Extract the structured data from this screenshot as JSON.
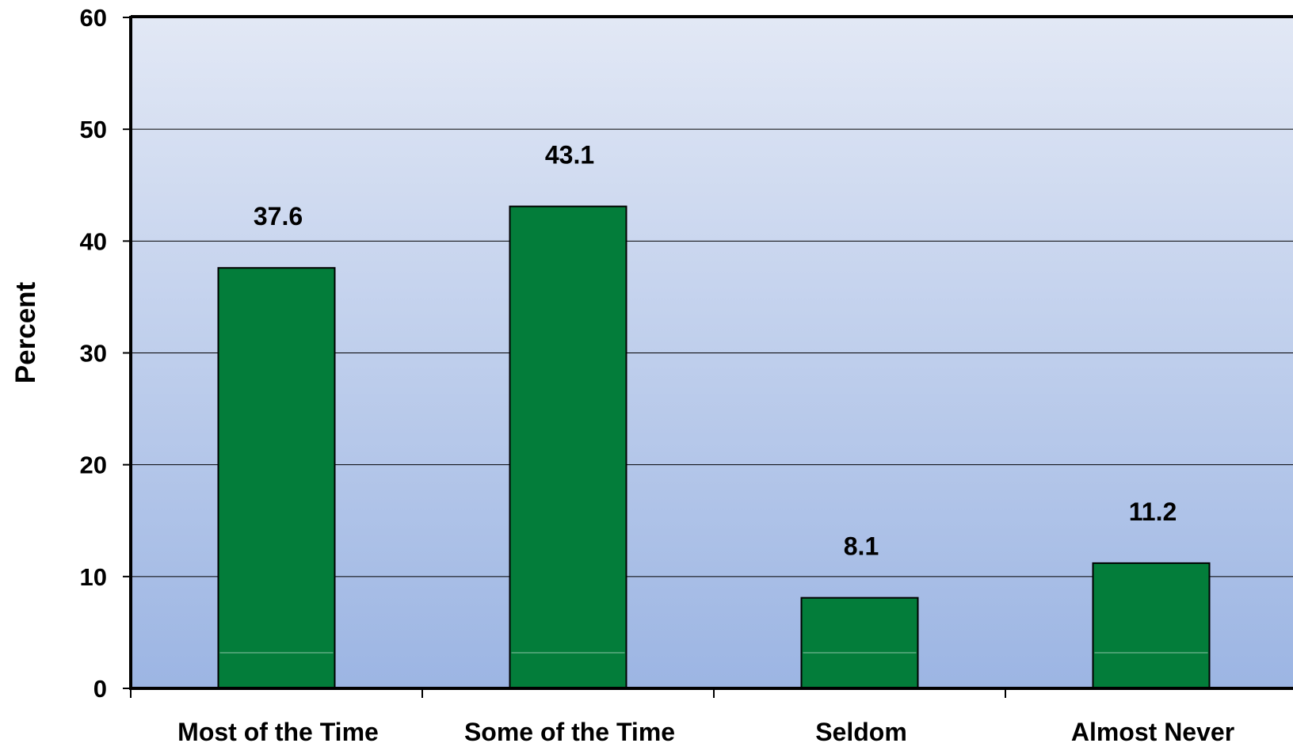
{
  "chart_data": {
    "type": "bar",
    "categories": [
      "Most of the Time",
      "Some of the Time",
      "Seldom",
      "Almost Never"
    ],
    "values": [
      37.6,
      43.1,
      8.1,
      11.2
    ],
    "value_labels": [
      "37.6",
      "43.1",
      "8.1",
      "11.2"
    ],
    "ylabel": "Percent",
    "ylim": [
      0,
      60
    ],
    "yticks": [
      "0",
      "10",
      "20",
      "30",
      "40",
      "50",
      "60"
    ],
    "grid": true,
    "legend": "none"
  },
  "colors": {
    "bar_fill": "#037d3a",
    "bar_stroke": "#000000",
    "plot_bg_top": "#e2e8f5",
    "plot_bg_bottom": "#9cb5e3",
    "gridline": "#000000"
  }
}
